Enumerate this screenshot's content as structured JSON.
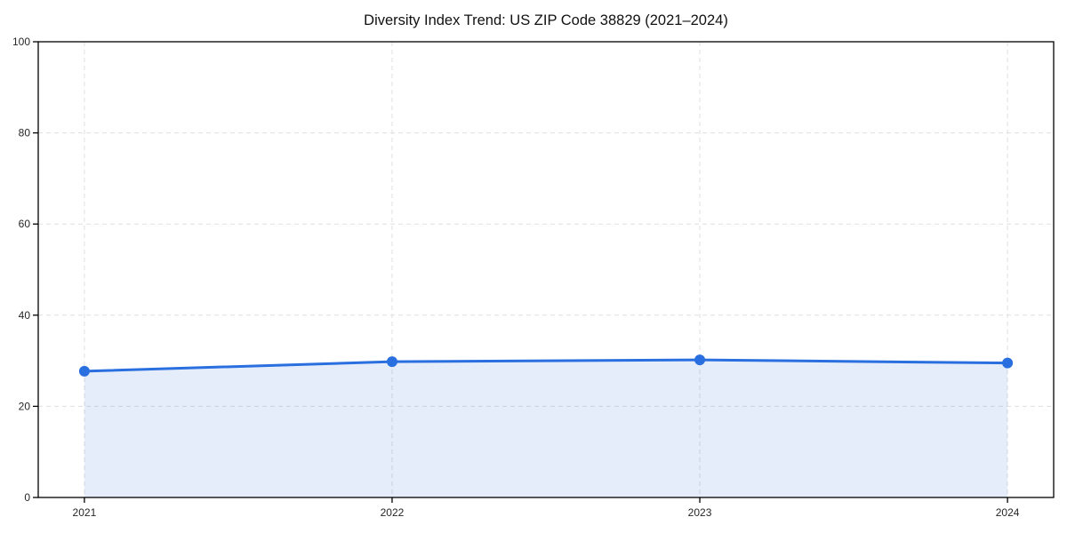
{
  "chart_data": {
    "type": "line",
    "title": "Diversity Index Trend: US ZIP Code 38829 (2021–2024)",
    "x": [
      "2021",
      "2022",
      "2023",
      "2024"
    ],
    "values": [
      27.7,
      29.8,
      30.2,
      29.5
    ],
    "ylim": [
      0,
      100
    ],
    "yticks": [
      0,
      20,
      40,
      60,
      80,
      100
    ],
    "ytick_labels": [
      "0",
      "20",
      "40",
      "60",
      "80",
      "100"
    ],
    "xlabel": "",
    "ylabel": "",
    "legend": "none",
    "grid": "dashed-both-axes",
    "area_fill": true,
    "colors": {
      "line": "#2a6fdf",
      "marker": "#2a6fdf",
      "fill": "rgba(42, 111, 223, 0.12)",
      "grid": "#dfdfdf",
      "axis": "#000000",
      "tick_label": "#262626",
      "title": "#111111",
      "background": "#ffffff"
    }
  }
}
